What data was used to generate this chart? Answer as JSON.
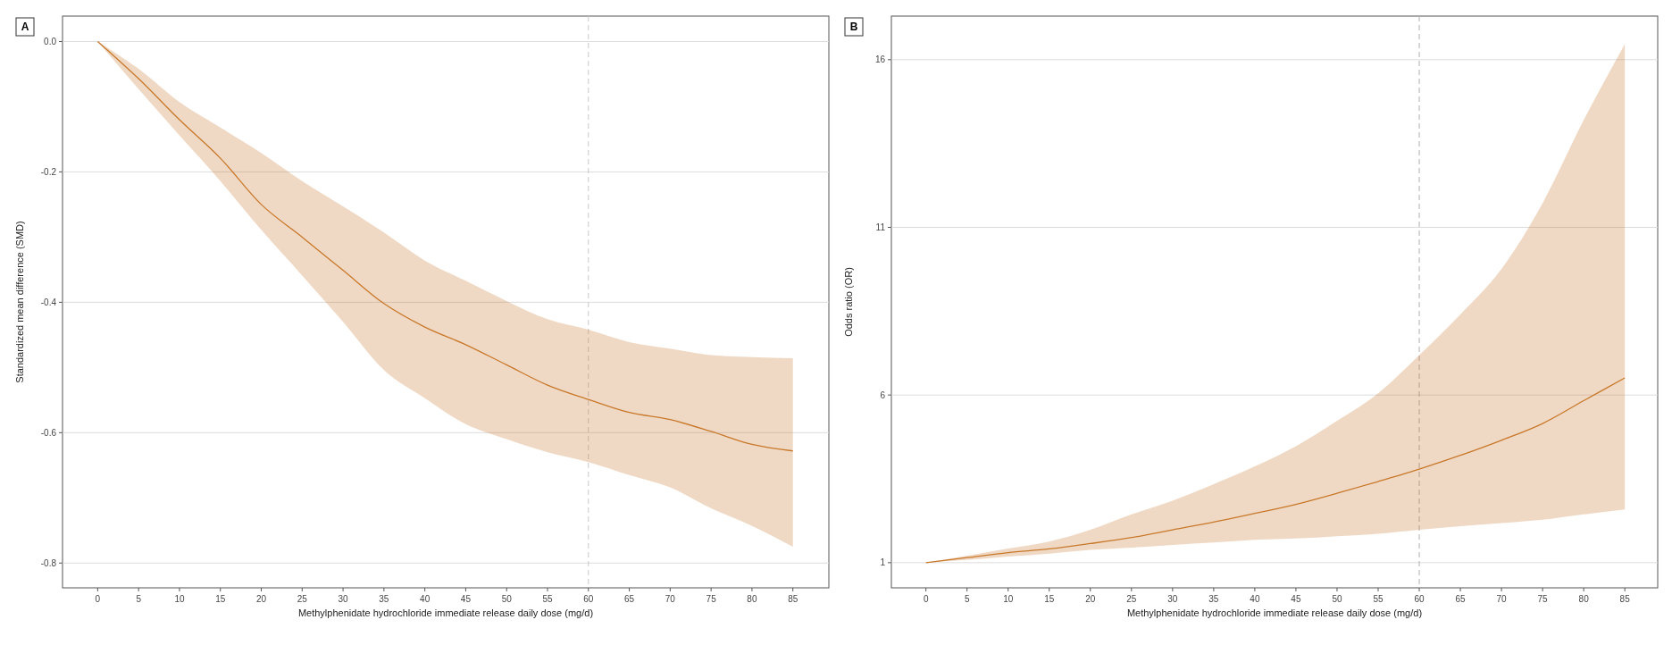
{
  "chart_data": [
    {
      "type": "line",
      "title": "A",
      "xlabel": "Methylphenidate hydrochloride immediate release daily dose (mg/d)",
      "ylabel": "Standardized mean difference (SMD)",
      "x": [
        0,
        5,
        10,
        15,
        20,
        25,
        30,
        35,
        40,
        45,
        50,
        55,
        60,
        65,
        70,
        75,
        80,
        85
      ],
      "series": [
        {
          "color": "#c8782a",
          "values": [
            0,
            -0.057,
            -0.12,
            -0.179,
            -0.25,
            -0.3,
            -0.351,
            -0.402,
            -0.438,
            -0.465,
            -0.496,
            -0.527,
            -0.549,
            -0.569,
            -0.58,
            -0.598,
            -0.618,
            -0.628
          ],
          "lower": [
            0,
            -0.073,
            -0.144,
            -0.214,
            -0.289,
            -0.359,
            -0.43,
            -0.504,
            -0.547,
            -0.587,
            -0.61,
            -0.63,
            -0.645,
            -0.665,
            -0.684,
            -0.716,
            -0.743,
            -0.775
          ],
          "upper": [
            0,
            -0.042,
            -0.093,
            -0.132,
            -0.171,
            -0.214,
            -0.253,
            -0.293,
            -0.336,
            -0.367,
            -0.398,
            -0.426,
            -0.442,
            -0.461,
            -0.471,
            -0.481,
            -0.484,
            -0.486
          ]
        }
      ],
      "xlim": [
        -4.3,
        89.4
      ],
      "xticks": [
        0,
        5,
        10,
        15,
        20,
        25,
        30,
        35,
        40,
        45,
        50,
        55,
        60,
        65,
        70,
        75,
        80,
        85
      ],
      "ylim": [
        -0.838,
        0.039
      ],
      "yticks": [
        {
          "value": 0,
          "label": "0.0"
        },
        -0.2,
        -0.4,
        -0.6,
        -0.8
      ],
      "grid": "y",
      "ref_lines": [
        {
          "axis": "x",
          "value": 60,
          "color": "#c8c8c8",
          "line_style": "dashed"
        }
      ]
    },
    {
      "type": "line",
      "title": "B",
      "xlabel": "Methylphenidate hydrochloride immediate release daily dose (mg/d)",
      "ylabel": "Odds ratio (OR)",
      "x": [
        0,
        5,
        10,
        15,
        20,
        25,
        30,
        35,
        40,
        45,
        50,
        55,
        60,
        65,
        70,
        75,
        80,
        85
      ],
      "series": [
        {
          "color": "#c8782a",
          "values": [
            1,
            1.15,
            1.3,
            1.41,
            1.57,
            1.75,
            1.98,
            2.21,
            2.47,
            2.74,
            3.07,
            3.42,
            3.79,
            4.2,
            4.65,
            5.15,
            5.83,
            6.51
          ],
          "lower": [
            1,
            1.08,
            1.18,
            1.27,
            1.38,
            1.45,
            1.53,
            1.6,
            1.68,
            1.72,
            1.79,
            1.86,
            1.98,
            2.09,
            2.18,
            2.28,
            2.44,
            2.59
          ],
          "upper": [
            1,
            1.21,
            1.42,
            1.63,
            1.98,
            2.44,
            2.85,
            3.34,
            3.87,
            4.47,
            5.23,
            6.05,
            7.19,
            8.4,
            9.76,
            11.72,
            14.2,
            16.47
          ]
        }
      ],
      "xlim": [
        -4.2,
        89
      ],
      "xticks": [
        0,
        5,
        10,
        15,
        20,
        25,
        30,
        35,
        40,
        45,
        50,
        55,
        60,
        65,
        70,
        75,
        80,
        85
      ],
      "ylim": [
        0.25,
        17.3
      ],
      "yticks": [
        1,
        6,
        11,
        16
      ],
      "grid": "y",
      "ref_lines": [
        {
          "axis": "x",
          "value": 60,
          "color": "#b0b0b0",
          "line_style": "dashed"
        }
      ]
    }
  ]
}
